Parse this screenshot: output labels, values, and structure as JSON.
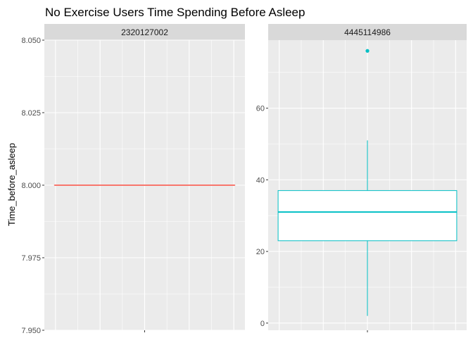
{
  "chart_data": {
    "type": "boxplot",
    "title": "No Exercise Users Time Spending Before Asleep",
    "xlabel": "",
    "ylabel": "Time_before_asleep",
    "facet_scales": "free_y",
    "grid": true,
    "legend": "none",
    "colors": {
      "panel_bg": "#ebebeb",
      "strip_bg": "#d9d9d9",
      "grid": "#ffffff",
      "tick_text": "#4d4d4d",
      "tick_mark": "#333333"
    },
    "panels": [
      {
        "label": "2320127002",
        "color": "#F8766D",
        "ylim": [
          7.95,
          8.05
        ],
        "y_ticks": [
          7.95,
          7.975,
          8.0,
          8.025,
          8.05
        ],
        "y_tick_labels": [
          "7.950",
          "7.975",
          "8.000",
          "8.025",
          "8.050"
        ],
        "box": {
          "min": 8.0,
          "q1": 8.0,
          "median": 8.0,
          "q3": 8.0,
          "max": 8.0
        },
        "outliers": []
      },
      {
        "label": "4445114986",
        "color": "#00BFC4",
        "ylim": [
          -2,
          79
        ],
        "y_ticks": [
          0,
          20,
          40,
          60
        ],
        "y_tick_labels": [
          "0",
          "20",
          "40",
          "60"
        ],
        "box": {
          "min": 2,
          "q1": 23,
          "median": 31,
          "q3": 37,
          "max": 51
        },
        "outliers": [
          76
        ]
      }
    ]
  }
}
